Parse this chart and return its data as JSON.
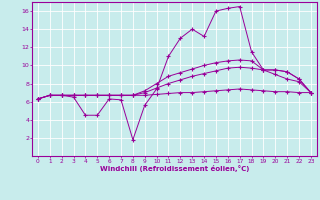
{
  "xlabel": "Windchill (Refroidissement éolien,°C)",
  "bg_color": "#c8ecec",
  "line_color": "#990099",
  "grid_color": "#aadddd",
  "xlim": [
    -0.5,
    23.5
  ],
  "ylim": [
    0,
    17
  ],
  "yticks": [
    2,
    4,
    6,
    8,
    10,
    12,
    14,
    16
  ],
  "xticks": [
    0,
    1,
    2,
    3,
    4,
    5,
    6,
    7,
    8,
    9,
    10,
    11,
    12,
    13,
    14,
    15,
    16,
    17,
    18,
    19,
    20,
    21,
    22,
    23
  ],
  "line1": [
    6.3,
    6.7,
    6.7,
    6.5,
    4.5,
    4.5,
    6.3,
    6.2,
    1.8,
    5.6,
    7.4,
    11.0,
    13.0,
    14.0,
    13.2,
    16.0,
    16.3,
    16.5,
    11.5,
    9.5,
    9.5,
    9.3,
    8.5,
    7.0
  ],
  "line2": [
    6.3,
    6.7,
    6.7,
    6.7,
    6.7,
    6.7,
    6.7,
    6.7,
    6.7,
    7.2,
    8.0,
    8.8,
    9.2,
    9.6,
    10.0,
    10.3,
    10.5,
    10.6,
    10.5,
    9.5,
    9.5,
    9.3,
    8.5,
    7.0
  ],
  "line3": [
    6.3,
    6.7,
    6.7,
    6.7,
    6.7,
    6.7,
    6.7,
    6.7,
    6.7,
    7.0,
    7.5,
    8.0,
    8.4,
    8.8,
    9.1,
    9.4,
    9.7,
    9.8,
    9.7,
    9.5,
    9.0,
    8.5,
    8.2,
    7.0
  ],
  "line4": [
    6.3,
    6.7,
    6.7,
    6.7,
    6.7,
    6.7,
    6.7,
    6.7,
    6.7,
    6.7,
    6.8,
    6.9,
    7.0,
    7.0,
    7.1,
    7.2,
    7.3,
    7.4,
    7.3,
    7.2,
    7.1,
    7.1,
    7.0,
    7.0
  ]
}
